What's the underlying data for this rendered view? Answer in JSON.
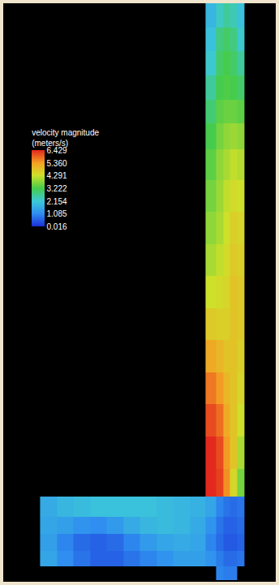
{
  "chart_data": {
    "type": "heatmap",
    "tick_labels": false,
    "xlim": [
      0,
      344
    ],
    "ylim": [
      721,
      0
    ],
    "x": [
      57,
      78,
      99,
      120,
      141,
      162,
      183,
      204,
      225,
      246,
      264,
      273,
      282,
      291,
      300
    ],
    "y": [
      15,
      45,
      75,
      105,
      135,
      165,
      200,
      240,
      280,
      320,
      360,
      400,
      440,
      480,
      520,
      560,
      600,
      630,
      651,
      672,
      693,
      710
    ],
    "cells": [
      [
        null,
        null,
        null,
        null,
        null,
        null,
        null,
        null,
        null,
        null,
        1.8,
        2.3,
        2.6,
        2.4,
        2.0
      ],
      [
        null,
        null,
        null,
        null,
        null,
        null,
        null,
        null,
        null,
        null,
        2.0,
        2.8,
        3.0,
        2.8,
        2.2
      ],
      [
        null,
        null,
        null,
        null,
        null,
        null,
        null,
        null,
        null,
        null,
        2.2,
        3.0,
        3.2,
        3.0,
        2.6
      ],
      [
        null,
        null,
        null,
        null,
        null,
        null,
        null,
        null,
        null,
        null,
        2.6,
        3.2,
        3.3,
        3.2,
        3.0
      ],
      [
        null,
        null,
        null,
        null,
        null,
        null,
        null,
        null,
        null,
        null,
        2.9,
        3.4,
        3.5,
        3.5,
        3.4
      ],
      [
        null,
        null,
        null,
        null,
        null,
        null,
        null,
        null,
        null,
        null,
        3.2,
        3.6,
        3.8,
        3.9,
        3.8
      ],
      [
        null,
        null,
        null,
        null,
        null,
        null,
        null,
        null,
        null,
        null,
        3.4,
        3.8,
        4.0,
        4.2,
        4.1
      ],
      [
        null,
        null,
        null,
        null,
        null,
        null,
        null,
        null,
        null,
        null,
        3.6,
        3.9,
        4.2,
        4.4,
        4.3
      ],
      [
        null,
        null,
        null,
        null,
        null,
        null,
        null,
        null,
        null,
        null,
        3.8,
        4.0,
        4.3,
        4.6,
        4.5
      ],
      [
        null,
        null,
        null,
        null,
        null,
        null,
        null,
        null,
        null,
        null,
        4.0,
        4.2,
        4.4,
        4.7,
        4.6
      ],
      [
        null,
        null,
        null,
        null,
        null,
        null,
        null,
        null,
        null,
        null,
        4.3,
        4.4,
        4.5,
        4.8,
        4.7
      ],
      [
        null,
        null,
        null,
        null,
        null,
        null,
        null,
        null,
        null,
        null,
        4.7,
        4.6,
        4.6,
        4.8,
        4.7
      ],
      [
        null,
        null,
        null,
        null,
        null,
        null,
        null,
        null,
        null,
        null,
        5.2,
        5.0,
        4.8,
        4.8,
        4.6
      ],
      [
        null,
        null,
        null,
        null,
        null,
        null,
        null,
        null,
        null,
        null,
        5.7,
        5.4,
        5.0,
        4.8,
        4.5
      ],
      [
        null,
        null,
        null,
        null,
        null,
        null,
        null,
        null,
        null,
        null,
        6.1,
        5.8,
        5.2,
        4.8,
        4.3
      ],
      [
        null,
        null,
        null,
        null,
        null,
        null,
        null,
        null,
        null,
        null,
        6.4,
        6.1,
        5.4,
        4.8,
        4.0
      ],
      [
        null,
        null,
        null,
        null,
        null,
        null,
        null,
        null,
        null,
        null,
        6.4,
        6.2,
        5.5,
        4.5,
        3.6
      ],
      [
        1.6,
        1.8,
        1.9,
        2.0,
        2.0,
        2.0,
        2.0,
        1.9,
        1.8,
        1.7,
        1.5,
        1.0,
        0.8,
        0.7,
        0.8
      ],
      [
        1.5,
        1.4,
        1.2,
        1.1,
        1.3,
        1.6,
        1.8,
        1.9,
        1.8,
        1.6,
        1.2,
        0.8,
        0.6,
        0.6,
        0.7
      ],
      [
        1.4,
        1.0,
        0.7,
        0.6,
        0.7,
        1.0,
        1.3,
        1.5,
        1.6,
        1.5,
        1.0,
        0.7,
        0.5,
        0.5,
        0.6
      ],
      [
        1.5,
        1.1,
        0.8,
        0.6,
        0.6,
        0.8,
        1.0,
        1.2,
        1.4,
        1.4,
        1.2,
        0.9,
        0.7,
        0.7,
        0.8
      ],
      [
        null,
        null,
        null,
        null,
        null,
        null,
        null,
        null,
        null,
        null,
        null,
        1.0,
        0.9,
        0.9,
        null
      ]
    ],
    "colorbar": {
      "title": [
        "velocity magnitude",
        "(meters/s)"
      ],
      "range": [
        0.016,
        6.429
      ],
      "ticks": [
        6.429,
        {
          "value": 5.36,
          "label": "5.360"
        },
        4.291,
        3.222,
        2.154,
        1.085,
        0.016
      ]
    }
  }
}
